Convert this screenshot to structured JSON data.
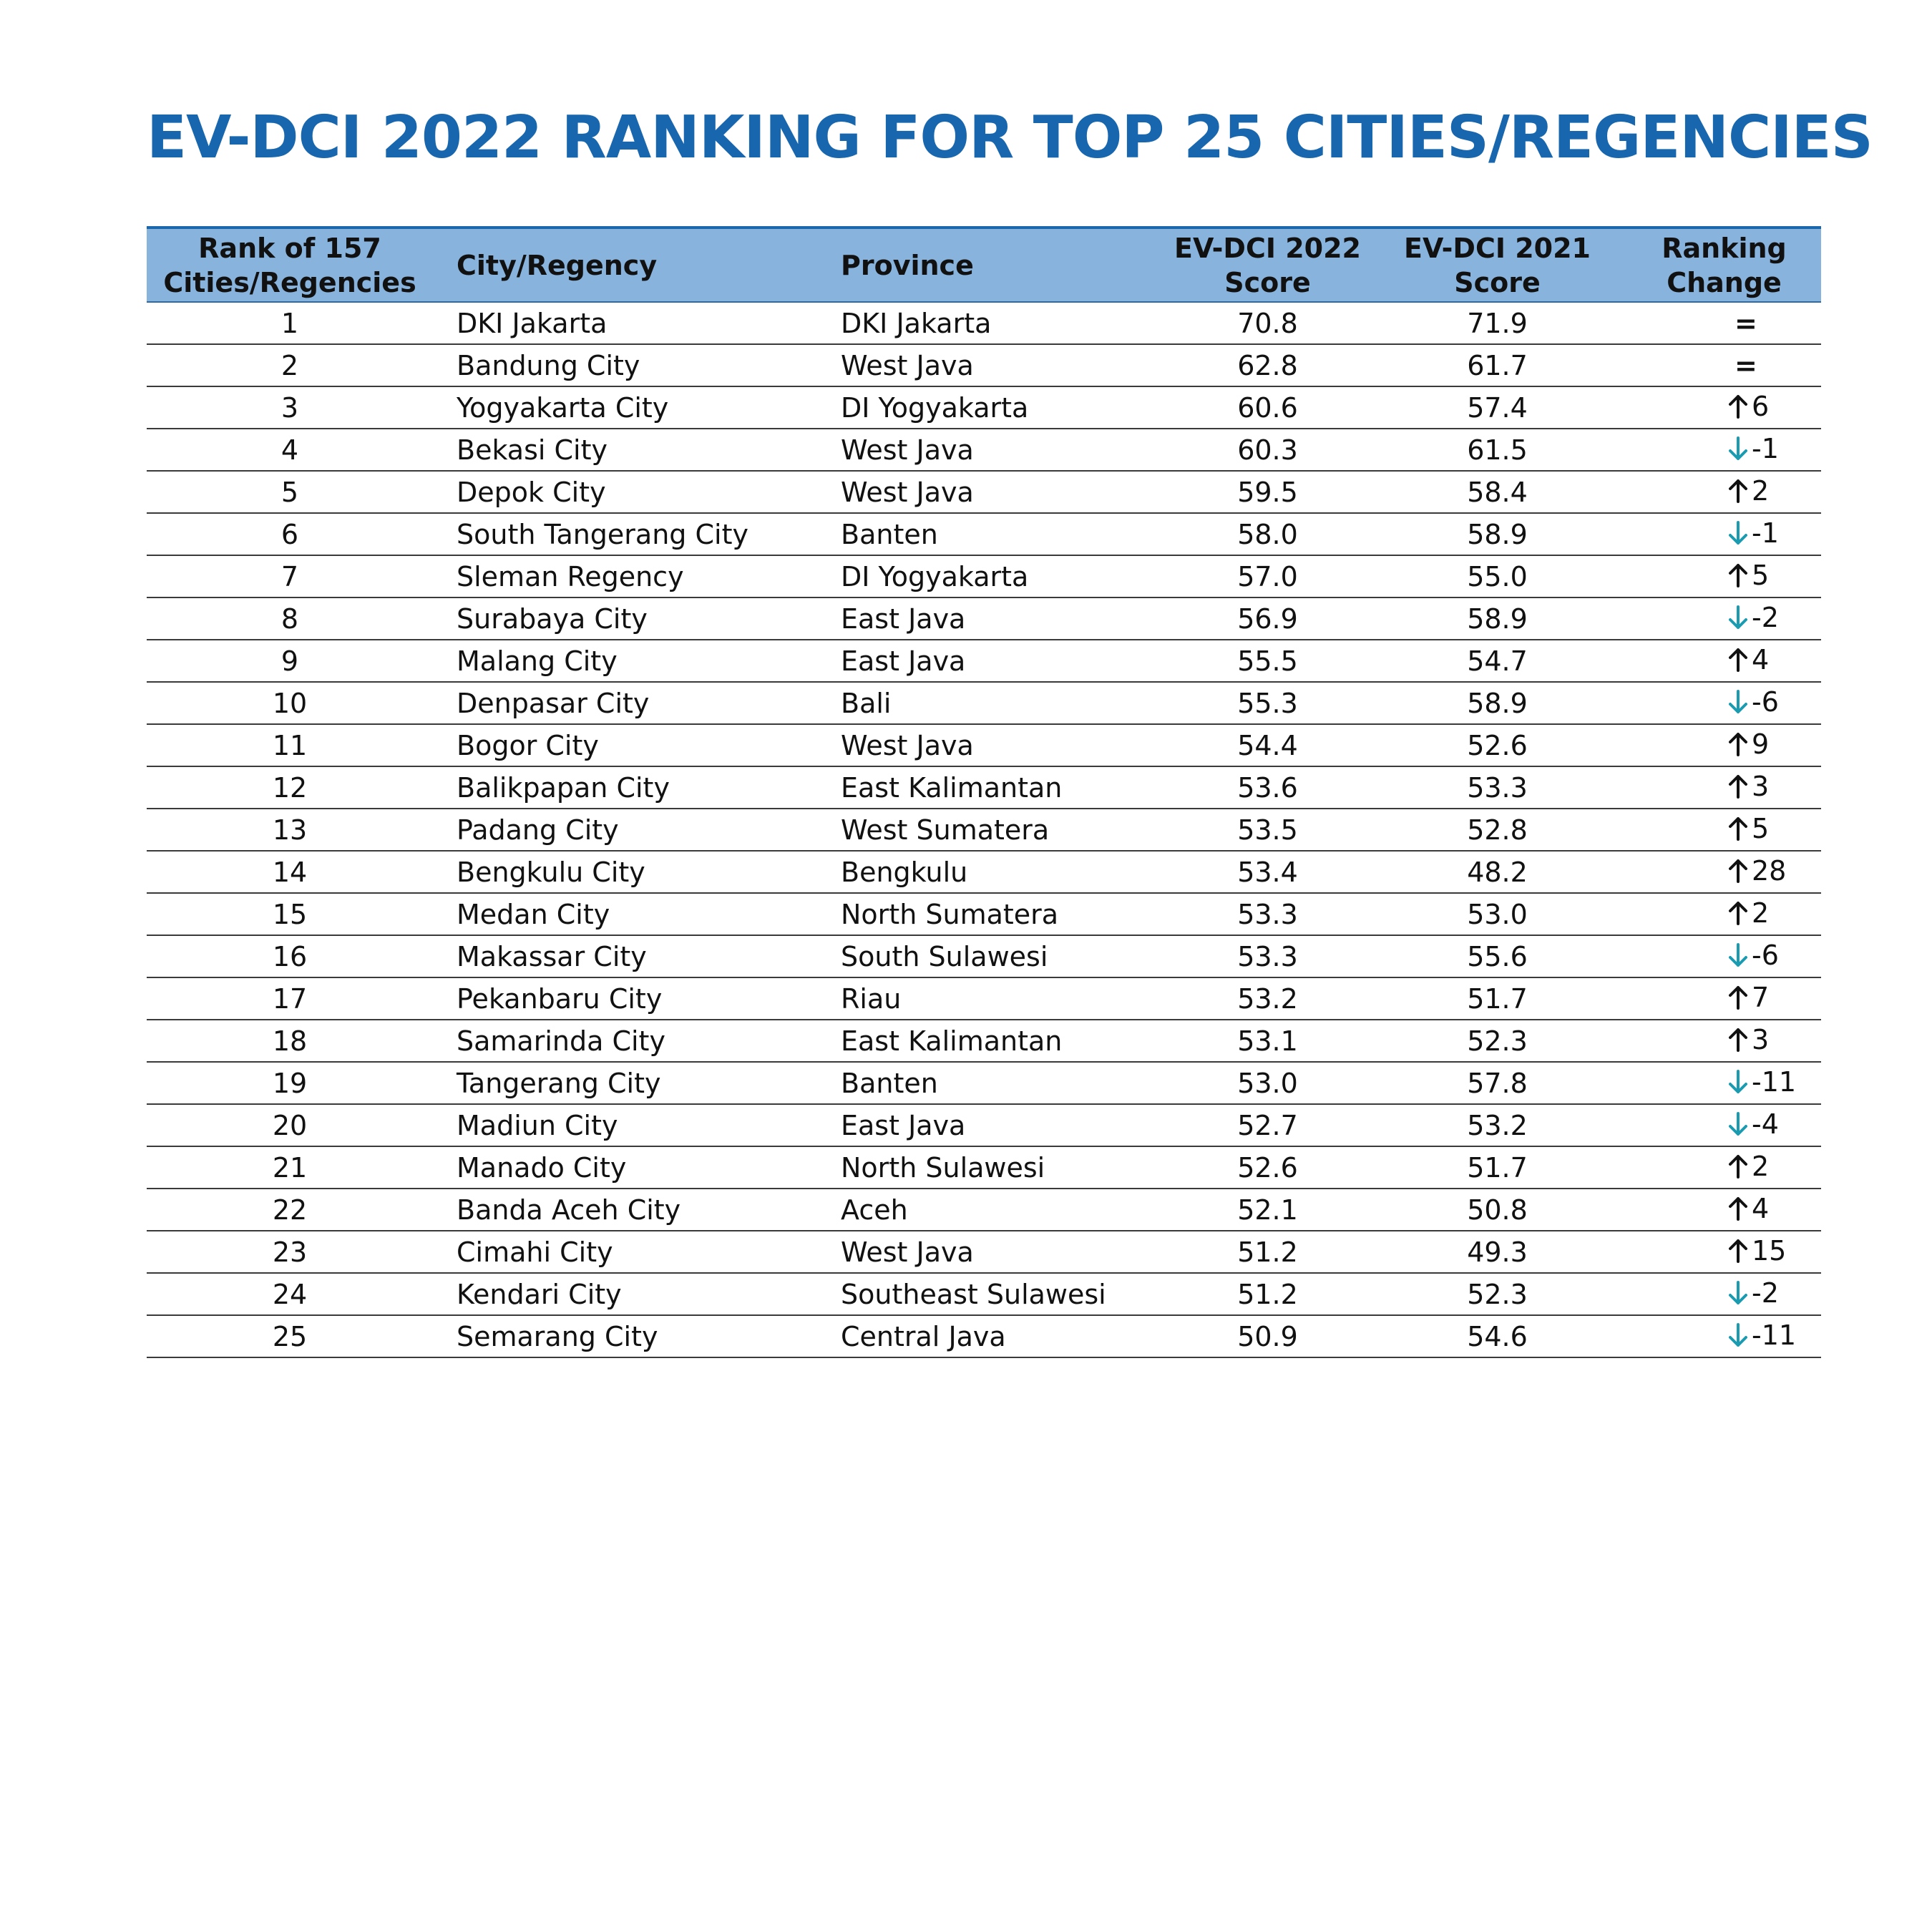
{
  "title": "EV-DCI 2022 RANKING FOR TOP 25 CITIES/REGENCIES",
  "colors": {
    "title": "#1766ae",
    "header_bg": "#87b3dd",
    "arrow_up": "#111111",
    "arrow_down": "#1a9bb0"
  },
  "table": {
    "headers": {
      "rank_line1": "Rank of 157",
      "rank_line2": "Cities/Regencies",
      "city": "City/Regency",
      "province": "Province",
      "s22_line1": "EV-DCI 2022",
      "s22_line2": "Score",
      "s21_line1": "EV-DCI 2021",
      "s21_line2": "Score",
      "chg_line1": "Ranking",
      "chg_line2": "Change"
    },
    "rows": [
      {
        "rank": "1",
        "city": "DKI Jakarta",
        "province": "DKI Jakarta",
        "s22": "70.8",
        "s21": "71.9",
        "dir": "same",
        "change": "="
      },
      {
        "rank": "2",
        "city": "Bandung City",
        "province": "West Java",
        "s22": "62.8",
        "s21": "61.7",
        "dir": "same",
        "change": "="
      },
      {
        "rank": "3",
        "city": "Yogyakarta City",
        "province": "DI Yogyakarta",
        "s22": "60.6",
        "s21": "57.4",
        "dir": "up",
        "change": "6"
      },
      {
        "rank": "4",
        "city": "Bekasi City",
        "province": "West Java",
        "s22": "60.3",
        "s21": "61.5",
        "dir": "down",
        "change": "-1"
      },
      {
        "rank": "5",
        "city": "Depok City",
        "province": "West Java",
        "s22": "59.5",
        "s21": "58.4",
        "dir": "up",
        "change": "2"
      },
      {
        "rank": "6",
        "city": "South Tangerang City",
        "province": "Banten",
        "s22": "58.0",
        "s21": "58.9",
        "dir": "down",
        "change": "-1"
      },
      {
        "rank": "7",
        "city": "Sleman Regency",
        "province": "DI Yogyakarta",
        "s22": "57.0",
        "s21": "55.0",
        "dir": "up",
        "change": "5"
      },
      {
        "rank": "8",
        "city": "Surabaya City",
        "province": "East Java",
        "s22": "56.9",
        "s21": "58.9",
        "dir": "down",
        "change": "-2"
      },
      {
        "rank": "9",
        "city": "Malang City",
        "province": "East Java",
        "s22": "55.5",
        "s21": "54.7",
        "dir": "up",
        "change": "4"
      },
      {
        "rank": "10",
        "city": "Denpasar City",
        "province": "Bali",
        "s22": "55.3",
        "s21": "58.9",
        "dir": "down",
        "change": "-6"
      },
      {
        "rank": "11",
        "city": "Bogor City",
        "province": "West Java",
        "s22": "54.4",
        "s21": "52.6",
        "dir": "up",
        "change": "9"
      },
      {
        "rank": "12",
        "city": "Balikpapan City",
        "province": "East Kalimantan",
        "s22": "53.6",
        "s21": "53.3",
        "dir": "up",
        "change": "3"
      },
      {
        "rank": "13",
        "city": "Padang City",
        "province": "West Sumatera",
        "s22": "53.5",
        "s21": "52.8",
        "dir": "up",
        "change": "5"
      },
      {
        "rank": "14",
        "city": "Bengkulu City",
        "province": "Bengkulu",
        "s22": "53.4",
        "s21": "48.2",
        "dir": "up",
        "change": "28"
      },
      {
        "rank": "15",
        "city": "Medan City",
        "province": "North Sumatera",
        "s22": "53.3",
        "s21": "53.0",
        "dir": "up",
        "change": "2"
      },
      {
        "rank": "16",
        "city": "Makassar City",
        "province": "South Sulawesi",
        "s22": "53.3",
        "s21": "55.6",
        "dir": "down",
        "change": "-6"
      },
      {
        "rank": "17",
        "city": "Pekanbaru City",
        "province": "Riau",
        "s22": "53.2",
        "s21": "51.7",
        "dir": "up",
        "change": "7"
      },
      {
        "rank": "18",
        "city": "Samarinda City",
        "province": "East Kalimantan",
        "s22": "53.1",
        "s21": "52.3",
        "dir": "up",
        "change": "3"
      },
      {
        "rank": "19",
        "city": "Tangerang City",
        "province": "Banten",
        "s22": "53.0",
        "s21": "57.8",
        "dir": "down",
        "change": "-11"
      },
      {
        "rank": "20",
        "city": "Madiun City",
        "province": "East Java",
        "s22": "52.7",
        "s21": "53.2",
        "dir": "down",
        "change": "-4"
      },
      {
        "rank": "21",
        "city": "Manado City",
        "province": "North Sulawesi",
        "s22": "52.6",
        "s21": "51.7",
        "dir": "up",
        "change": "2"
      },
      {
        "rank": "22",
        "city": "Banda Aceh City",
        "province": "Aceh",
        "s22": "52.1",
        "s21": "50.8",
        "dir": "up",
        "change": "4"
      },
      {
        "rank": "23",
        "city": "Cimahi City",
        "province": "West Java",
        "s22": "51.2",
        "s21": "49.3",
        "dir": "up",
        "change": "15"
      },
      {
        "rank": "24",
        "city": "Kendari City",
        "province": "Southeast Sulawesi",
        "s22": "51.2",
        "s21": "52.3",
        "dir": "down",
        "change": "-2"
      },
      {
        "rank": "25",
        "city": "Semarang City",
        "province": "Central Java",
        "s22": "50.9",
        "s21": "54.6",
        "dir": "down",
        "change": "-11"
      }
    ]
  }
}
